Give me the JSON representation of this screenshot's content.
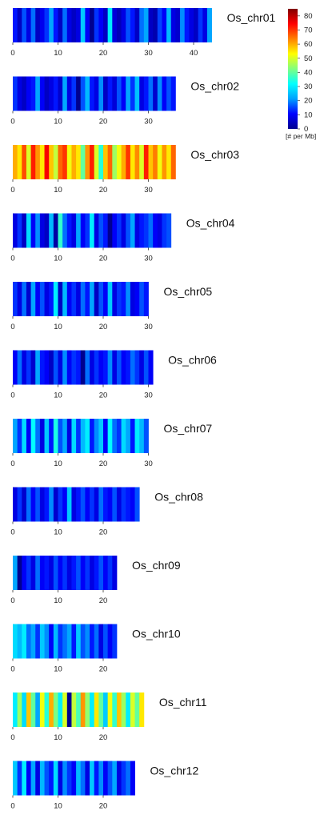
{
  "chart_data": {
    "type": "heatmap",
    "colorbar": {
      "min": 0,
      "max": 85,
      "ticks": [
        0,
        10,
        20,
        30,
        40,
        50,
        60,
        70,
        80
      ],
      "unit_label": "[# per Mb]",
      "colors": [
        "#00008f",
        "#0000ff",
        "#00a0ff",
        "#00ffff",
        "#80ff80",
        "#ffff00",
        "#ff8000",
        "#ff0000",
        "#800000"
      ]
    },
    "x_ticks": [
      0,
      10,
      20,
      30,
      40
    ],
    "chromosomes": [
      {
        "label": "Os_chr01",
        "length_mb": 44,
        "density": [
          12,
          5,
          16,
          8,
          18,
          5,
          9,
          14,
          22,
          12,
          5,
          18,
          8,
          5,
          8,
          26,
          10,
          0,
          14,
          10,
          5,
          30,
          7,
          4,
          8,
          16,
          12,
          5,
          18,
          22,
          5,
          3,
          15,
          10,
          24,
          8,
          6,
          20,
          12,
          8,
          5,
          14,
          8,
          22
        ]
      },
      {
        "label": "Os_chr02",
        "length_mb": 36,
        "density": [
          14,
          8,
          5,
          10,
          12,
          22,
          10,
          5,
          8,
          12,
          6,
          22,
          8,
          14,
          0,
          16,
          24,
          12,
          8,
          20,
          5,
          12,
          7,
          16,
          10,
          22,
          14,
          25,
          8,
          12,
          18,
          6,
          20,
          10,
          16,
          12
        ]
      },
      {
        "label": "Os_chr03",
        "length_mb": 36,
        "density": [
          60,
          55,
          68,
          50,
          72,
          62,
          55,
          75,
          58,
          48,
          66,
          70,
          52,
          60,
          55,
          40,
          62,
          72,
          50,
          35,
          58,
          66,
          45,
          52,
          60,
          70,
          55,
          63,
          50,
          72,
          58,
          64,
          52,
          62,
          55,
          66
        ]
      },
      {
        "label": "Os_chr04",
        "length_mb": 35,
        "density": [
          8,
          14,
          5,
          28,
          10,
          20,
          8,
          5,
          24,
          2,
          36,
          18,
          12,
          8,
          22,
          10,
          14,
          30,
          8,
          16,
          12,
          0,
          10,
          14,
          8,
          16,
          22,
          8,
          12,
          14,
          18,
          10,
          8,
          14,
          16
        ]
      },
      {
        "label": "Os_chr05",
        "length_mb": 30,
        "density": [
          14,
          8,
          18,
          6,
          22,
          10,
          16,
          8,
          12,
          30,
          5,
          24,
          10,
          14,
          8,
          18,
          12,
          22,
          5,
          16,
          10,
          26,
          8,
          14,
          12,
          20,
          8,
          10,
          16,
          12
        ]
      },
      {
        "label": "Os_chr06",
        "length_mb": 31,
        "density": [
          10,
          18,
          8,
          14,
          6,
          22,
          12,
          10,
          5,
          16,
          8,
          20,
          10,
          14,
          12,
          0,
          18,
          8,
          14,
          10,
          12,
          20,
          8,
          16,
          10,
          12,
          18,
          14,
          8,
          16,
          10
        ]
      },
      {
        "label": "Os_chr07",
        "length_mb": 30,
        "density": [
          22,
          14,
          28,
          10,
          32,
          18,
          8,
          26,
          12,
          34,
          16,
          22,
          8,
          28,
          14,
          24,
          30,
          12,
          20,
          26,
          10,
          32,
          18,
          14,
          28,
          22,
          12,
          30,
          24,
          16
        ]
      },
      {
        "label": "Os_chr08",
        "length_mb": 28,
        "density": [
          8,
          14,
          6,
          18,
          10,
          16,
          8,
          12,
          20,
          6,
          14,
          10,
          26,
          8,
          12,
          16,
          10,
          14,
          8,
          18,
          12,
          10,
          16,
          8,
          14,
          12,
          10,
          16
        ]
      },
      {
        "label": "Os_chr09",
        "length_mb": 23,
        "density": [
          22,
          0,
          10,
          14,
          8,
          18,
          10,
          12,
          8,
          16,
          10,
          14,
          8,
          12,
          16,
          10,
          14,
          8,
          12,
          16,
          10,
          14,
          8
        ]
      },
      {
        "label": "Os_chr10",
        "length_mb": 23,
        "density": [
          28,
          24,
          30,
          18,
          22,
          14,
          26,
          20,
          10,
          24,
          14,
          18,
          22,
          12,
          26,
          16,
          20,
          12,
          18,
          8,
          16,
          10,
          14
        ]
      },
      {
        "label": "Os_chr11",
        "length_mb": 29,
        "density": [
          30,
          45,
          28,
          58,
          40,
          22,
          52,
          35,
          60,
          42,
          30,
          50,
          0,
          48,
          38,
          62,
          44,
          30,
          55,
          40,
          26,
          52,
          36,
          58,
          45,
          30,
          50,
          40,
          55
        ]
      },
      {
        "label": "Os_chr12",
        "length_mb": 27,
        "density": [
          26,
          14,
          30,
          10,
          22,
          8,
          24,
          16,
          12,
          28,
          8,
          20,
          14,
          10,
          24,
          18,
          8,
          26,
          12,
          20,
          10,
          16,
          22,
          8,
          14,
          18,
          10
        ]
      }
    ]
  }
}
